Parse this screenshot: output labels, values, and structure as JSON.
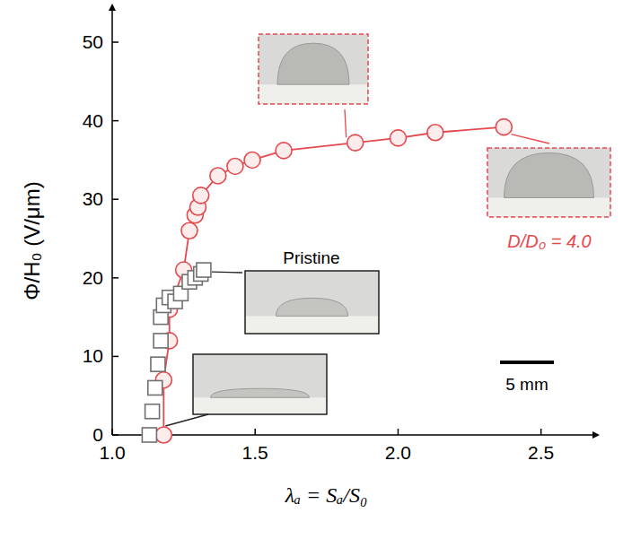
{
  "chart_data": {
    "type": "scatter",
    "x_label": "λₐ = Sₐ/S₀",
    "y_label": "Φ/H₀ (V/μm)",
    "xlim": [
      1.0,
      2.68
    ],
    "ylim": [
      0,
      54
    ],
    "xticks": [
      {
        "value": 1.0,
        "label": "1.0"
      },
      {
        "value": 1.5,
        "label": "1.5"
      },
      {
        "value": 2.0,
        "label": "2.0"
      },
      {
        "value": 2.5,
        "label": "2.5"
      }
    ],
    "yticks": [
      0,
      10,
      20,
      30,
      40,
      50
    ],
    "grid": false,
    "series": [
      {
        "name": "D/D₀ = 4.0",
        "color": "#e5484d",
        "marker": "circle",
        "line_style": "solid",
        "x": [
          1.18,
          1.18,
          1.2,
          1.2,
          1.25,
          1.27,
          1.29,
          1.3,
          1.31,
          1.37,
          1.43,
          1.49,
          1.6,
          1.85,
          2.0,
          2.13,
          2.37
        ],
        "values": [
          0,
          7,
          12,
          16,
          21,
          26,
          28,
          29,
          30.5,
          33,
          34.2,
          35,
          36.2,
          37.2,
          37.8,
          38.5,
          39.2
        ]
      },
      {
        "name": "Pristine",
        "color": "#707070",
        "marker": "square",
        "line_style": "none",
        "x": [
          1.13,
          1.14,
          1.15,
          1.16,
          1.17,
          1.17,
          1.18,
          1.2,
          1.22,
          1.24,
          1.27,
          1.29,
          1.31,
          1.32
        ],
        "values": [
          0,
          3,
          6,
          9,
          12,
          15,
          16.5,
          17.5,
          17,
          18,
          19.5,
          20,
          20.5,
          21
        ]
      }
    ],
    "annotations": [
      "5 mm"
    ]
  }
}
